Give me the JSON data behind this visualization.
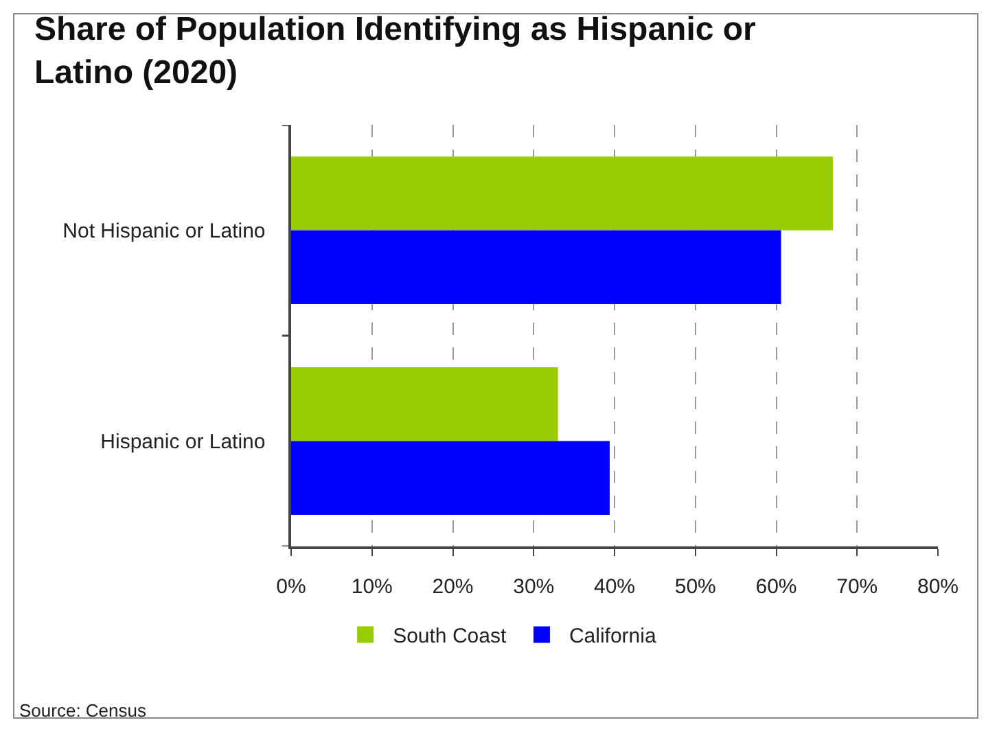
{
  "chart_data": {
    "type": "bar",
    "orientation": "horizontal",
    "title": "Share of Population Identifying as Hispanic or Latino (2020)",
    "categories": [
      "Not Hispanic or Latino",
      "Hispanic or Latino"
    ],
    "series": [
      {
        "name": "South Coast",
        "color": "#99cc00",
        "values": [
          67,
          33
        ]
      },
      {
        "name": "California",
        "color": "#0000ff",
        "values": [
          60.6,
          39.4
        ]
      }
    ],
    "xlim": [
      0,
      80
    ],
    "xticks": [
      {
        "value": 0,
        "label": "0%"
      },
      {
        "value": 10,
        "label": "10%"
      },
      {
        "value": 20,
        "label": "20%"
      },
      {
        "value": 30,
        "label": "30%"
      },
      {
        "value": 40,
        "label": "40%"
      },
      {
        "value": 50,
        "label": "50%"
      },
      {
        "value": 60,
        "label": "60%"
      },
      {
        "value": 70,
        "label": "70%"
      },
      {
        "value": 80,
        "label": "80%"
      }
    ],
    "grid": "x",
    "legend": "bottom",
    "annotations": [
      "Source: Census"
    ]
  }
}
